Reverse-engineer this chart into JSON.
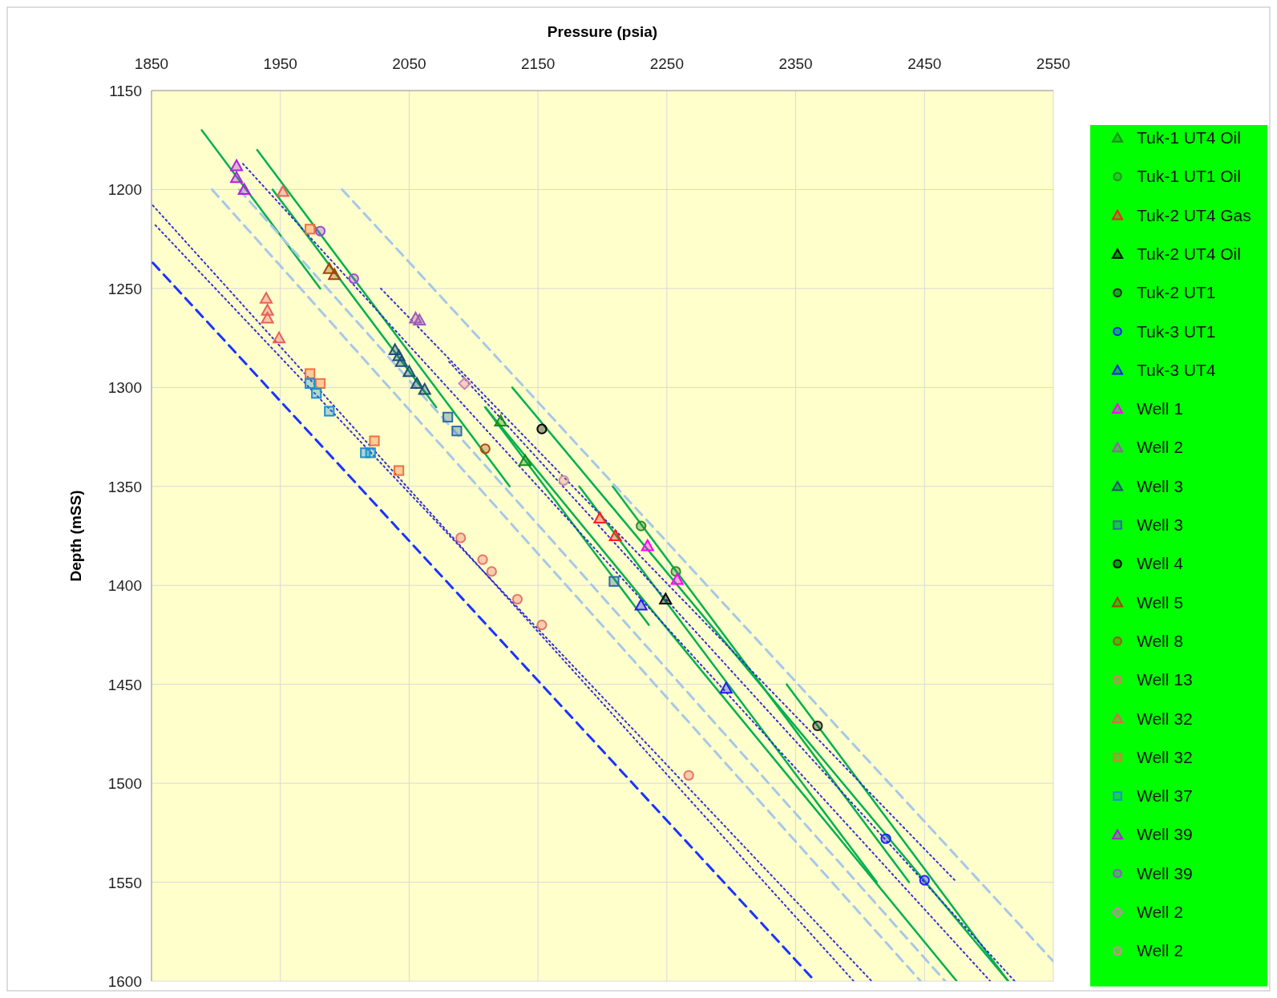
{
  "chart_data": {
    "type": "scatter",
    "xlabel": "Pressure (psia)",
    "ylabel": "Depth (mSS)",
    "xlim": [
      1850,
      2550
    ],
    "xticks": [
      1850,
      1950,
      2050,
      2150,
      2250,
      2350,
      2450,
      2550
    ],
    "ylim": [
      1600,
      1150
    ],
    "yticks": [
      1150,
      1200,
      1250,
      1300,
      1350,
      1400,
      1450,
      1500,
      1550,
      1600
    ],
    "grid": true,
    "legend": "right",
    "series": [
      {
        "name": "Tuk-1 UT4 Oil",
        "marker": "triangle",
        "color": "#1a8a1a",
        "x": [
          2121,
          2140
        ],
        "values": [
          1317,
          1337
        ]
      },
      {
        "name": "Tuk-1 UT1 Oil",
        "marker": "circle",
        "color": "#2e8b2e",
        "x": [
          2230,
          2257
        ],
        "values": [
          1370,
          1393
        ]
      },
      {
        "name": "Tuk-2 UT4 Gas",
        "marker": "triangle",
        "color": "#ff2020",
        "x": [
          2198,
          2210
        ],
        "values": [
          1366,
          1375
        ]
      },
      {
        "name": "Tuk-2 UT4 Oil",
        "marker": "triangle",
        "color": "#000000",
        "x": [
          2249
        ],
        "values": [
          1407
        ]
      },
      {
        "name": "Tuk-2 UT1",
        "marker": "circle",
        "color": "#222222",
        "x": [
          2367
        ],
        "values": [
          1471
        ]
      },
      {
        "name": "Tuk-3 UT1",
        "marker": "circle",
        "color": "#1f1fff",
        "x": [
          2420,
          2450
        ],
        "values": [
          1528,
          1549
        ]
      },
      {
        "name": "Tuk-3 UT4",
        "marker": "triangle",
        "color": "#2020ee",
        "x": [
          2230,
          2296
        ],
        "values": [
          1410,
          1452
        ]
      },
      {
        "name": "Well 1",
        "marker": "triangle",
        "color": "#ff00ff",
        "x": [
          2235,
          2258
        ],
        "values": [
          1380,
          1397
        ]
      },
      {
        "name": "Well 2",
        "marker": "triangle",
        "color": "#a05ab4",
        "x": [
          2055,
          2058
        ],
        "values": [
          1265,
          1266
        ]
      },
      {
        "name": "Well 3",
        "marker": "triangle",
        "color": "#1f4e79",
        "x": [
          2039,
          2042,
          2044,
          2050,
          2056,
          2062
        ],
        "values": [
          1281,
          1284,
          1287,
          1292,
          1298,
          1301
        ]
      },
      {
        "name": "Well 3",
        "marker": "square",
        "color": "#2e6da4",
        "x": [
          2080,
          2087,
          2209
        ],
        "values": [
          1315,
          1322,
          1398
        ]
      },
      {
        "name": "Well 4",
        "marker": "circle",
        "color": "#000000",
        "x": [
          2153
        ],
        "values": [
          1321
        ]
      },
      {
        "name": "Well 5",
        "marker": "triangle",
        "color": "#a0460a",
        "x": [
          1988,
          1992
        ],
        "values": [
          1240,
          1243
        ]
      },
      {
        "name": "Well 8",
        "marker": "circle",
        "color": "#b04a0c",
        "x": [
          2109
        ],
        "values": [
          1331
        ]
      },
      {
        "name": "Well 13",
        "marker": "circle",
        "color": "#e8736c",
        "x": [
          2090,
          2107,
          2114,
          2134,
          2153,
          2267
        ],
        "values": [
          1376,
          1387,
          1393,
          1407,
          1420,
          1496
        ]
      },
      {
        "name": "Well 32",
        "marker": "triangle",
        "color": "#e8605a",
        "x": [
          1939,
          1940,
          1940,
          1949,
          1952
        ],
        "values": [
          1255,
          1261,
          1265,
          1275,
          1201
        ]
      },
      {
        "name": "Well 32",
        "marker": "square",
        "color": "#f07040",
        "x": [
          1973,
          1973,
          1981,
          2023,
          2042
        ],
        "values": [
          1220,
          1293,
          1298,
          1327,
          1342
        ]
      },
      {
        "name": "Well 37",
        "marker": "square",
        "color": "#1f8fd0",
        "x": [
          1973,
          1978,
          1988,
          2016,
          2020
        ],
        "values": [
          1298,
          1303,
          1312,
          1333,
          1333
        ]
      },
      {
        "name": "Well 39",
        "marker": "triangle",
        "color": "#b020e0",
        "x": [
          1916,
          1916,
          1922
        ],
        "values": [
          1188,
          1194,
          1200
        ]
      },
      {
        "name": "Well 39",
        "marker": "circle",
        "color": "#9a4fd0",
        "x": [
          1981,
          2007
        ],
        "values": [
          1221,
          1245
        ]
      },
      {
        "name": "Well 2",
        "marker": "diamond",
        "color": "#d080b0",
        "x": [
          2093
        ],
        "values": [
          1298
        ]
      },
      {
        "name": "Well 2",
        "marker": "circle",
        "color": "#d08aa0",
        "x": [
          2170
        ],
        "values": [
          1347
        ]
      },
      {
        "type": "line",
        "line_style": "solid",
        "color": "#00b050",
        "x": [
          1889,
          1981
        ],
        "values": [
          1170,
          1250
        ]
      },
      {
        "type": "line",
        "line_style": "solid",
        "color": "#00b050",
        "x": [
          1932,
          2128
        ],
        "values": [
          1180,
          1350
        ]
      },
      {
        "type": "line",
        "line_style": "solid",
        "color": "#00b050",
        "x": [
          1944,
          2071
        ],
        "values": [
          1200,
          1310
        ]
      },
      {
        "type": "line",
        "line_style": "solid",
        "color": "#00b050",
        "x": [
          2109,
          2236
        ],
        "values": [
          1310,
          1420
        ]
      },
      {
        "type": "line",
        "line_style": "solid",
        "color": "#00b050",
        "x": [
          2109,
          2475
        ],
        "values": [
          1310,
          1600
        ]
      },
      {
        "type": "line",
        "line_style": "solid",
        "color": "#00b050",
        "x": [
          2130,
          2515
        ],
        "values": [
          1300,
          1600
        ]
      },
      {
        "type": "line",
        "line_style": "solid",
        "color": "#00b050",
        "x": [
          2182,
          2413
        ],
        "values": [
          1350,
          1550
        ]
      },
      {
        "type": "line",
        "line_style": "solid",
        "color": "#00b050",
        "x": [
          2208,
          2438
        ],
        "values": [
          1350,
          1550
        ]
      },
      {
        "type": "line",
        "line_style": "solid",
        "color": "#00b050",
        "x": [
          2343,
          2515
        ],
        "values": [
          1450,
          1600
        ]
      },
      {
        "type": "line",
        "line_style": "dotted",
        "color": "#3333cc",
        "x": [
          1851,
          2395
        ],
        "values": [
          1208,
          1600
        ]
      },
      {
        "type": "line",
        "line_style": "dotted",
        "color": "#3333cc",
        "x": [
          1853,
          2409
        ],
        "values": [
          1218,
          1600
        ]
      },
      {
        "type": "line",
        "line_style": "dotted",
        "color": "#3333cc",
        "x": [
          1921,
          2501
        ],
        "values": [
          1187,
          1600
        ]
      },
      {
        "type": "line",
        "line_style": "dotted",
        "color": "#3333cc",
        "x": [
          2028,
          2475
        ],
        "values": [
          1250,
          1550
        ]
      },
      {
        "type": "line",
        "line_style": "dotted",
        "color": "#3333cc",
        "x": [
          2081,
          2520
        ],
        "values": [
          1287,
          1600
        ]
      },
      {
        "type": "line",
        "line_style": "dashed",
        "color": "#1a33ff",
        "x": [
          1851,
          2365
        ],
        "values": [
          1237,
          1600
        ]
      },
      {
        "type": "line",
        "line_style": "dashed",
        "color": "#a6c8e8",
        "x": [
          1897,
          2447
        ],
        "values": [
          1200,
          1600
        ]
      },
      {
        "type": "line",
        "line_style": "dashed",
        "color": "#a6c8e8",
        "x": [
          1918,
          2466
        ],
        "values": [
          1200,
          1600
        ]
      },
      {
        "type": "line",
        "line_style": "dashed",
        "color": "#a6c8e8",
        "x": [
          1998,
          2550
        ],
        "values": [
          1200,
          1590
        ]
      }
    ]
  }
}
